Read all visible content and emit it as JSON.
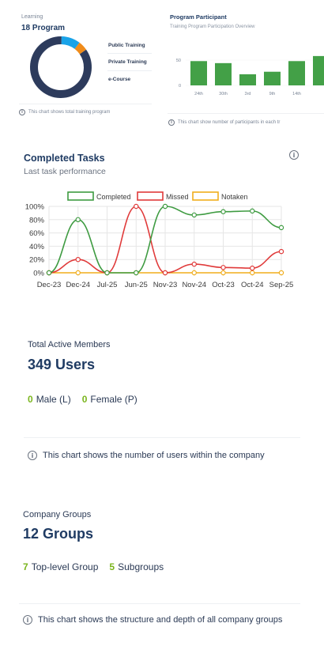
{
  "learning": {
    "label": "Learning",
    "count": "18 Program",
    "legend": [
      "Public Training",
      "Private Training",
      "e-Course"
    ],
    "info": "This chart shows total training program",
    "colors": {
      "main": "#2d3b5c",
      "accent1": "#19a3e8",
      "accent2": "#f08c1a",
      "track": "#e7eaef"
    }
  },
  "participant": {
    "title": "Program Participant",
    "subtitle": "Training Program Participation Overview",
    "info": "This chart show number of participants in each tr",
    "bar_color": "#43a047"
  },
  "completed_tasks": {
    "title": "Completed Tasks",
    "subtitle": "Last task performance",
    "info_icon": "info-icon"
  },
  "members": {
    "label": "Total Active Members",
    "count": "349 Users",
    "male_num": "0",
    "male_label": "Male (L)",
    "female_num": "0",
    "female_label": "Female (P)",
    "info": "This chart shows the number of users within the company"
  },
  "groups": {
    "label": "Company Groups",
    "count": "12 Groups",
    "top_num": "7",
    "top_label": "Top-level Group",
    "sub_num": "5",
    "sub_label": "Subgroups",
    "info": "This chart shows the structure and depth of all company groups"
  },
  "chart_data": [
    {
      "type": "pie",
      "labels": [
        "Public Training",
        "Private Training",
        "e-Course"
      ],
      "values": [
        0.1,
        0.05,
        0.85
      ],
      "colors": [
        "#19a3e8",
        "#f08c1a",
        "#2d3b5c"
      ]
    },
    {
      "type": "bar",
      "title": "Program Participant",
      "categories": [
        "24th",
        "30th",
        "3rd",
        "9th",
        "14th",
        ""
      ],
      "values": [
        48,
        44,
        22,
        27,
        48,
        58
      ],
      "y_ticks": [
        "0",
        "50"
      ],
      "ylim": [
        0,
        75
      ]
    },
    {
      "type": "line",
      "title": "Completed Tasks",
      "categories": [
        "Dec-23",
        "Dec-24",
        "Jul-25",
        "Jun-25",
        "Nov-23",
        "Nov-24",
        "Oct-23",
        "Oct-24",
        "Sep-25"
      ],
      "y_ticks": [
        "0%",
        "20%",
        "40%",
        "60%",
        "80%",
        "100%"
      ],
      "ylim": [
        0,
        100
      ],
      "series": [
        {
          "name": "Completed",
          "color": "#3e9b41",
          "values": [
            0,
            80,
            0,
            0,
            100,
            87,
            92,
            93,
            68
          ]
        },
        {
          "name": "Missed",
          "color": "#e03a3a",
          "values": [
            0,
            20,
            0,
            100,
            0,
            13,
            8,
            7,
            32
          ]
        },
        {
          "name": "Notaken",
          "color": "#f0ad1c",
          "values": [
            0,
            0,
            0,
            0,
            0,
            0,
            0,
            0,
            0
          ]
        }
      ]
    }
  ]
}
